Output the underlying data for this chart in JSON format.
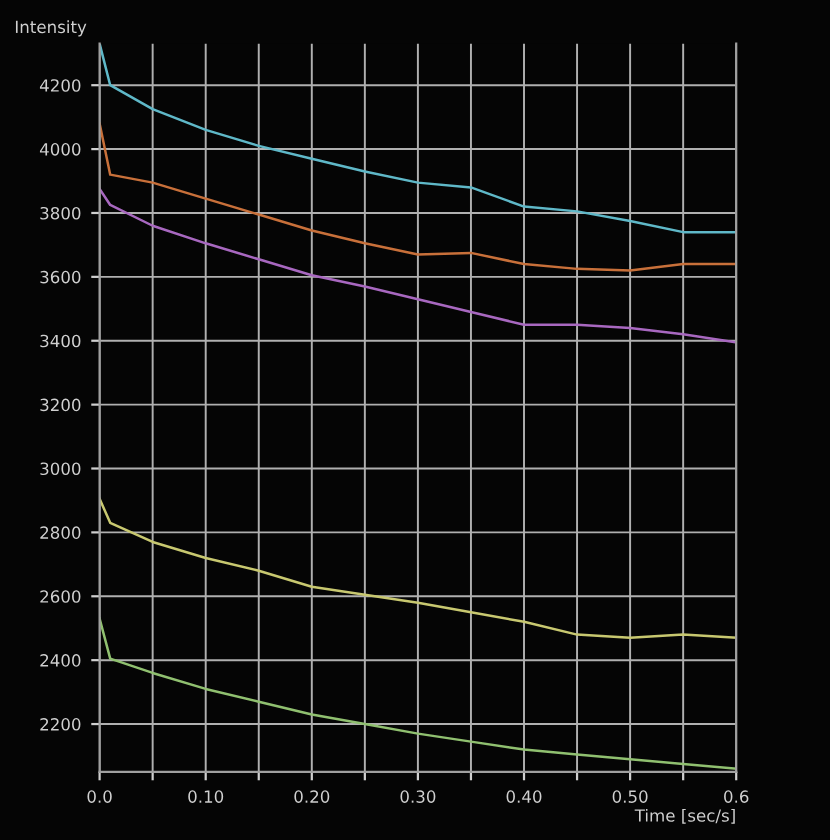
{
  "chart_data": {
    "type": "line",
    "ylabel": "Intensity",
    "xlabel": "Time [sec/s]",
    "xlim": [
      0,
      0.6
    ],
    "ylim": [
      2050,
      4330
    ],
    "xticks": [
      {
        "value": 0,
        "label": "0.0"
      },
      {
        "value": 0.05,
        "label": null
      },
      {
        "value": 0.1,
        "label": "0.10"
      },
      {
        "value": 0.15,
        "label": null
      },
      {
        "value": 0.2,
        "label": "0.20"
      },
      {
        "value": 0.25,
        "label": null
      },
      {
        "value": 0.3,
        "label": "0.30"
      },
      {
        "value": 0.35,
        "label": null
      },
      {
        "value": 0.4,
        "label": "0.40"
      },
      {
        "value": 0.45,
        "label": null
      },
      {
        "value": 0.5,
        "label": "0.50"
      },
      {
        "value": 0.55,
        "label": null
      },
      {
        "value": 0.6,
        "label": "0.6"
      }
    ],
    "yticks": [
      2200,
      2400,
      2600,
      2800,
      3000,
      3200,
      3400,
      3600,
      3800,
      4000,
      4200
    ],
    "grid": true,
    "legend": false,
    "marker": "none",
    "line_style": "solid",
    "x": [
      0,
      0.01,
      0.05,
      0.1,
      0.15,
      0.2,
      0.25,
      0.3,
      0.35,
      0.4,
      0.45,
      0.5,
      0.55,
      0.6
    ],
    "series": [
      {
        "color": "#5fb8c8",
        "values": [
          4330,
          4200,
          4125,
          4060,
          4010,
          3970,
          3930,
          3895,
          3880,
          3820,
          3805,
          3775,
          3740,
          3740
        ]
      },
      {
        "color": "#c8703a",
        "values": [
          4080,
          3920,
          3895,
          3845,
          3795,
          3745,
          3705,
          3670,
          3675,
          3640,
          3625,
          3620,
          3640,
          3640
        ]
      },
      {
        "color": "#a868c0",
        "values": [
          3875,
          3825,
          3760,
          3705,
          3655,
          3605,
          3570,
          3530,
          3490,
          3450,
          3450,
          3440,
          3420,
          3395
        ]
      },
      {
        "color": "#c8c870",
        "values": [
          2905,
          2830,
          2770,
          2720,
          2680,
          2630,
          2605,
          2580,
          2550,
          2520,
          2480,
          2470,
          2480,
          2470
        ]
      },
      {
        "color": "#90c070",
        "values": [
          2530,
          2405,
          2360,
          2310,
          2270,
          2230,
          2200,
          2170,
          2145,
          2120,
          2105,
          2090,
          2075,
          2060
        ]
      }
    ]
  }
}
